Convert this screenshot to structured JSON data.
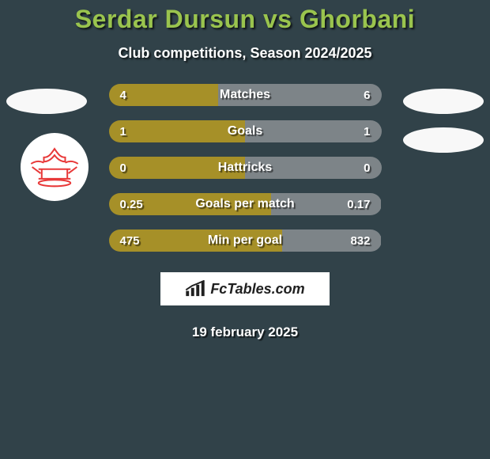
{
  "colors": {
    "page_bg": "#314249",
    "title": "#9ac44e",
    "left_bar": "#a69028",
    "right_bar": "#7d8488",
    "brand_border": "#314249",
    "brand_bg": "#ffffff",
    "brand_text": "#202020",
    "club_red": "#e83838"
  },
  "title": "Serdar Dursun vs Ghorbani",
  "subtitle": "Club competitions, Season 2024/2025",
  "rows": [
    {
      "label": "Matches",
      "left_val": "4",
      "right_val": "6",
      "left_pct": 40,
      "right_pct": 60
    },
    {
      "label": "Goals",
      "left_val": "1",
      "right_val": "1",
      "left_pct": 50,
      "right_pct": 50
    },
    {
      "label": "Hattricks",
      "left_val": "0",
      "right_val": "0",
      "left_pct": 50,
      "right_pct": 50
    },
    {
      "label": "Goals per match",
      "left_val": "0.25",
      "right_val": "0.17",
      "left_pct": 59.5,
      "right_pct": 40.5
    },
    {
      "label": "Min per goal",
      "left_val": "475",
      "right_val": "832",
      "left_pct": 63.6,
      "right_pct": 36.4
    }
  ],
  "brand": "FcTables.com",
  "date": "19 february 2025"
}
